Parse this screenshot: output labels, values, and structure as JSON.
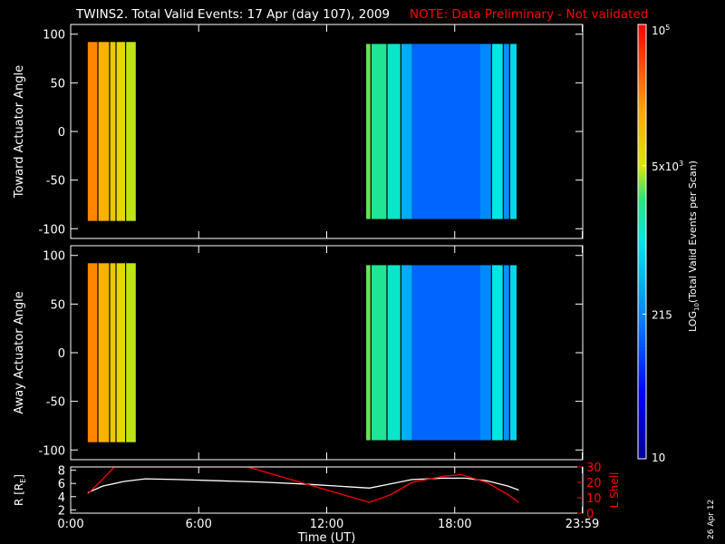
{
  "header": {
    "title": "TWINS2. Total Valid Events: 17 Apr (day 107), 2009",
    "note": "NOTE: Data Preliminary - Not validated"
  },
  "footer": {
    "date_stamp": "26 Apr 12"
  },
  "colors": {
    "background": "#000000",
    "axis": "#ffffff",
    "note": "#ff0000",
    "lshell": "#ff0000",
    "radius": "#ffffff"
  },
  "chart_data": [
    {
      "type": "heatmap",
      "panel": "top",
      "ylabel": "Toward Actuator Angle",
      "xlim": [
        0,
        24
      ],
      "ylim": [
        -110,
        110
      ],
      "yticks": [
        "100",
        "50",
        "0",
        "-50",
        "-100"
      ],
      "yticks_values": [
        100,
        50,
        0,
        -50,
        -100
      ],
      "color_scale": "log",
      "clim": [
        10,
        100000
      ],
      "segments": [
        {
          "x": [
            0.8,
            1.25
          ],
          "y": [
            -92,
            92
          ],
          "log_value": 4.35
        },
        {
          "x": [
            1.3,
            1.8
          ],
          "y": [
            -92,
            92
          ],
          "log_value": 4.1
        },
        {
          "x": [
            1.85,
            2.1
          ],
          "y": [
            -92,
            92
          ],
          "log_value": 3.95
        },
        {
          "x": [
            2.15,
            2.55
          ],
          "y": [
            -92,
            92
          ],
          "log_value": 3.8
        },
        {
          "x": [
            2.6,
            3.05
          ],
          "y": [
            -92,
            92
          ],
          "log_value": 3.65
        },
        {
          "x": [
            13.85,
            14.05
          ],
          "y": [
            -90,
            90
          ],
          "log_value": 3.5
        },
        {
          "x": [
            14.1,
            14.8
          ],
          "y": [
            -90,
            90
          ],
          "log_value": 3.3
        },
        {
          "x": [
            14.85,
            15.45
          ],
          "y": [
            -90,
            90
          ],
          "log_value": 3.1
        },
        {
          "x": [
            15.5,
            16.0
          ],
          "y": [
            -90,
            90
          ],
          "log_value": 2.6
        },
        {
          "x": [
            16.0,
            19.2
          ],
          "y": [
            -90,
            90
          ],
          "log_value": 2.15
        },
        {
          "x": [
            19.2,
            19.7
          ],
          "y": [
            -90,
            90
          ],
          "log_value": 2.35
        },
        {
          "x": [
            19.75,
            20.25
          ],
          "y": [
            -90,
            90
          ],
          "log_value": 3.0
        },
        {
          "x": [
            20.3,
            20.55
          ],
          "y": [
            -90,
            90
          ],
          "log_value": 2.4
        },
        {
          "x": [
            20.6,
            20.9
          ],
          "y": [
            -90,
            90
          ],
          "log_value": 2.9
        }
      ]
    },
    {
      "type": "heatmap",
      "panel": "middle",
      "ylabel": "Away Actuator Angle",
      "xlim": [
        0,
        24
      ],
      "ylim": [
        -110,
        110
      ],
      "yticks": [
        "100",
        "50",
        "0",
        "-50",
        "-100"
      ],
      "yticks_values": [
        100,
        50,
        0,
        -50,
        -100
      ],
      "color_scale": "log",
      "clim": [
        10,
        100000
      ],
      "segments": [
        {
          "x": [
            0.8,
            1.25
          ],
          "y": [
            -92,
            92
          ],
          "log_value": 4.35
        },
        {
          "x": [
            1.3,
            1.8
          ],
          "y": [
            -92,
            92
          ],
          "log_value": 4.1
        },
        {
          "x": [
            1.85,
            2.1
          ],
          "y": [
            -92,
            92
          ],
          "log_value": 3.95
        },
        {
          "x": [
            2.15,
            2.55
          ],
          "y": [
            -92,
            92
          ],
          "log_value": 3.8
        },
        {
          "x": [
            2.6,
            3.05
          ],
          "y": [
            -92,
            92
          ],
          "log_value": 3.65
        },
        {
          "x": [
            13.85,
            14.05
          ],
          "y": [
            -90,
            90
          ],
          "log_value": 3.5
        },
        {
          "x": [
            14.1,
            14.8
          ],
          "y": [
            -90,
            90
          ],
          "log_value": 3.3
        },
        {
          "x": [
            14.85,
            15.45
          ],
          "y": [
            -90,
            90
          ],
          "log_value": 3.1
        },
        {
          "x": [
            15.5,
            16.0
          ],
          "y": [
            -90,
            90
          ],
          "log_value": 2.6
        },
        {
          "x": [
            16.0,
            19.2
          ],
          "y": [
            -90,
            90
          ],
          "log_value": 2.15
        },
        {
          "x": [
            19.2,
            19.7
          ],
          "y": [
            -90,
            90
          ],
          "log_value": 2.35
        },
        {
          "x": [
            19.75,
            20.25
          ],
          "y": [
            -90,
            90
          ],
          "log_value": 3.0
        },
        {
          "x": [
            20.3,
            20.55
          ],
          "y": [
            -90,
            90
          ],
          "log_value": 2.4
        },
        {
          "x": [
            20.6,
            20.9
          ],
          "y": [
            -90,
            90
          ],
          "log_value": 2.9
        }
      ]
    },
    {
      "type": "line",
      "panel": "bottom",
      "xlabel": "Time (UT)",
      "xlim": [
        0,
        24
      ],
      "xticks": [
        "0:00",
        "6:00",
        "12:00",
        "18:00",
        "23:59"
      ],
      "xticks_values": [
        0,
        6,
        12,
        18,
        23.98
      ],
      "ylabel": "R [R",
      "ylabel_sub": "E",
      "ylabel_end": "]",
      "ylim": [
        1.5,
        8.5
      ],
      "yticks": [
        "2",
        "4",
        "6",
        "8"
      ],
      "yticks_values": [
        2,
        4,
        6,
        8
      ],
      "y2label": "L Shell",
      "y2lim": [
        0,
        30
      ],
      "y2ticks": [
        "0",
        "10",
        "20",
        "30"
      ],
      "y2ticks_values": [
        0,
        10,
        20,
        30
      ],
      "series": [
        {
          "axis": "left",
          "color": "#ffffff",
          "x": [
            0.8,
            1.5,
            2.5,
            3.5,
            5,
            7,
            9,
            11,
            12.5,
            14.0,
            14.8,
            16,
            17.5,
            18.5,
            19.5,
            20.5,
            21.0
          ],
          "y": [
            4.6,
            5.6,
            6.3,
            6.7,
            6.6,
            6.4,
            6.2,
            5.9,
            5.6,
            5.3,
            5.8,
            6.6,
            6.8,
            6.8,
            6.4,
            5.6,
            5.0
          ]
        },
        {
          "axis": "right",
          "color": "#ff0000",
          "x": [
            0.8,
            1.5,
            2.05,
            8.3,
            14.0,
            15.0,
            16.0,
            17.5,
            18.3,
            19.5,
            20.5,
            21.0
          ],
          "y": [
            12.5,
            22,
            30,
            30,
            7,
            12,
            20,
            24,
            25,
            20,
            12,
            7
          ]
        }
      ]
    }
  ],
  "colorbar": {
    "label_prefix": "LOG",
    "label_sub": "10",
    "label_rest": "(Total Valid Events per Scan)",
    "ticks": [
      {
        "log_value": 5,
        "base": "10",
        "exp": "5",
        "mult": ""
      },
      {
        "log_value": 3.699,
        "base": "10",
        "exp": "3",
        "mult": "5x"
      },
      {
        "log_value": 2.332,
        "base": "215",
        "exp": "",
        "mult": ""
      },
      {
        "log_value": 1,
        "base": "10",
        "exp": "",
        "mult": ""
      }
    ],
    "range": [
      1,
      5
    ]
  }
}
